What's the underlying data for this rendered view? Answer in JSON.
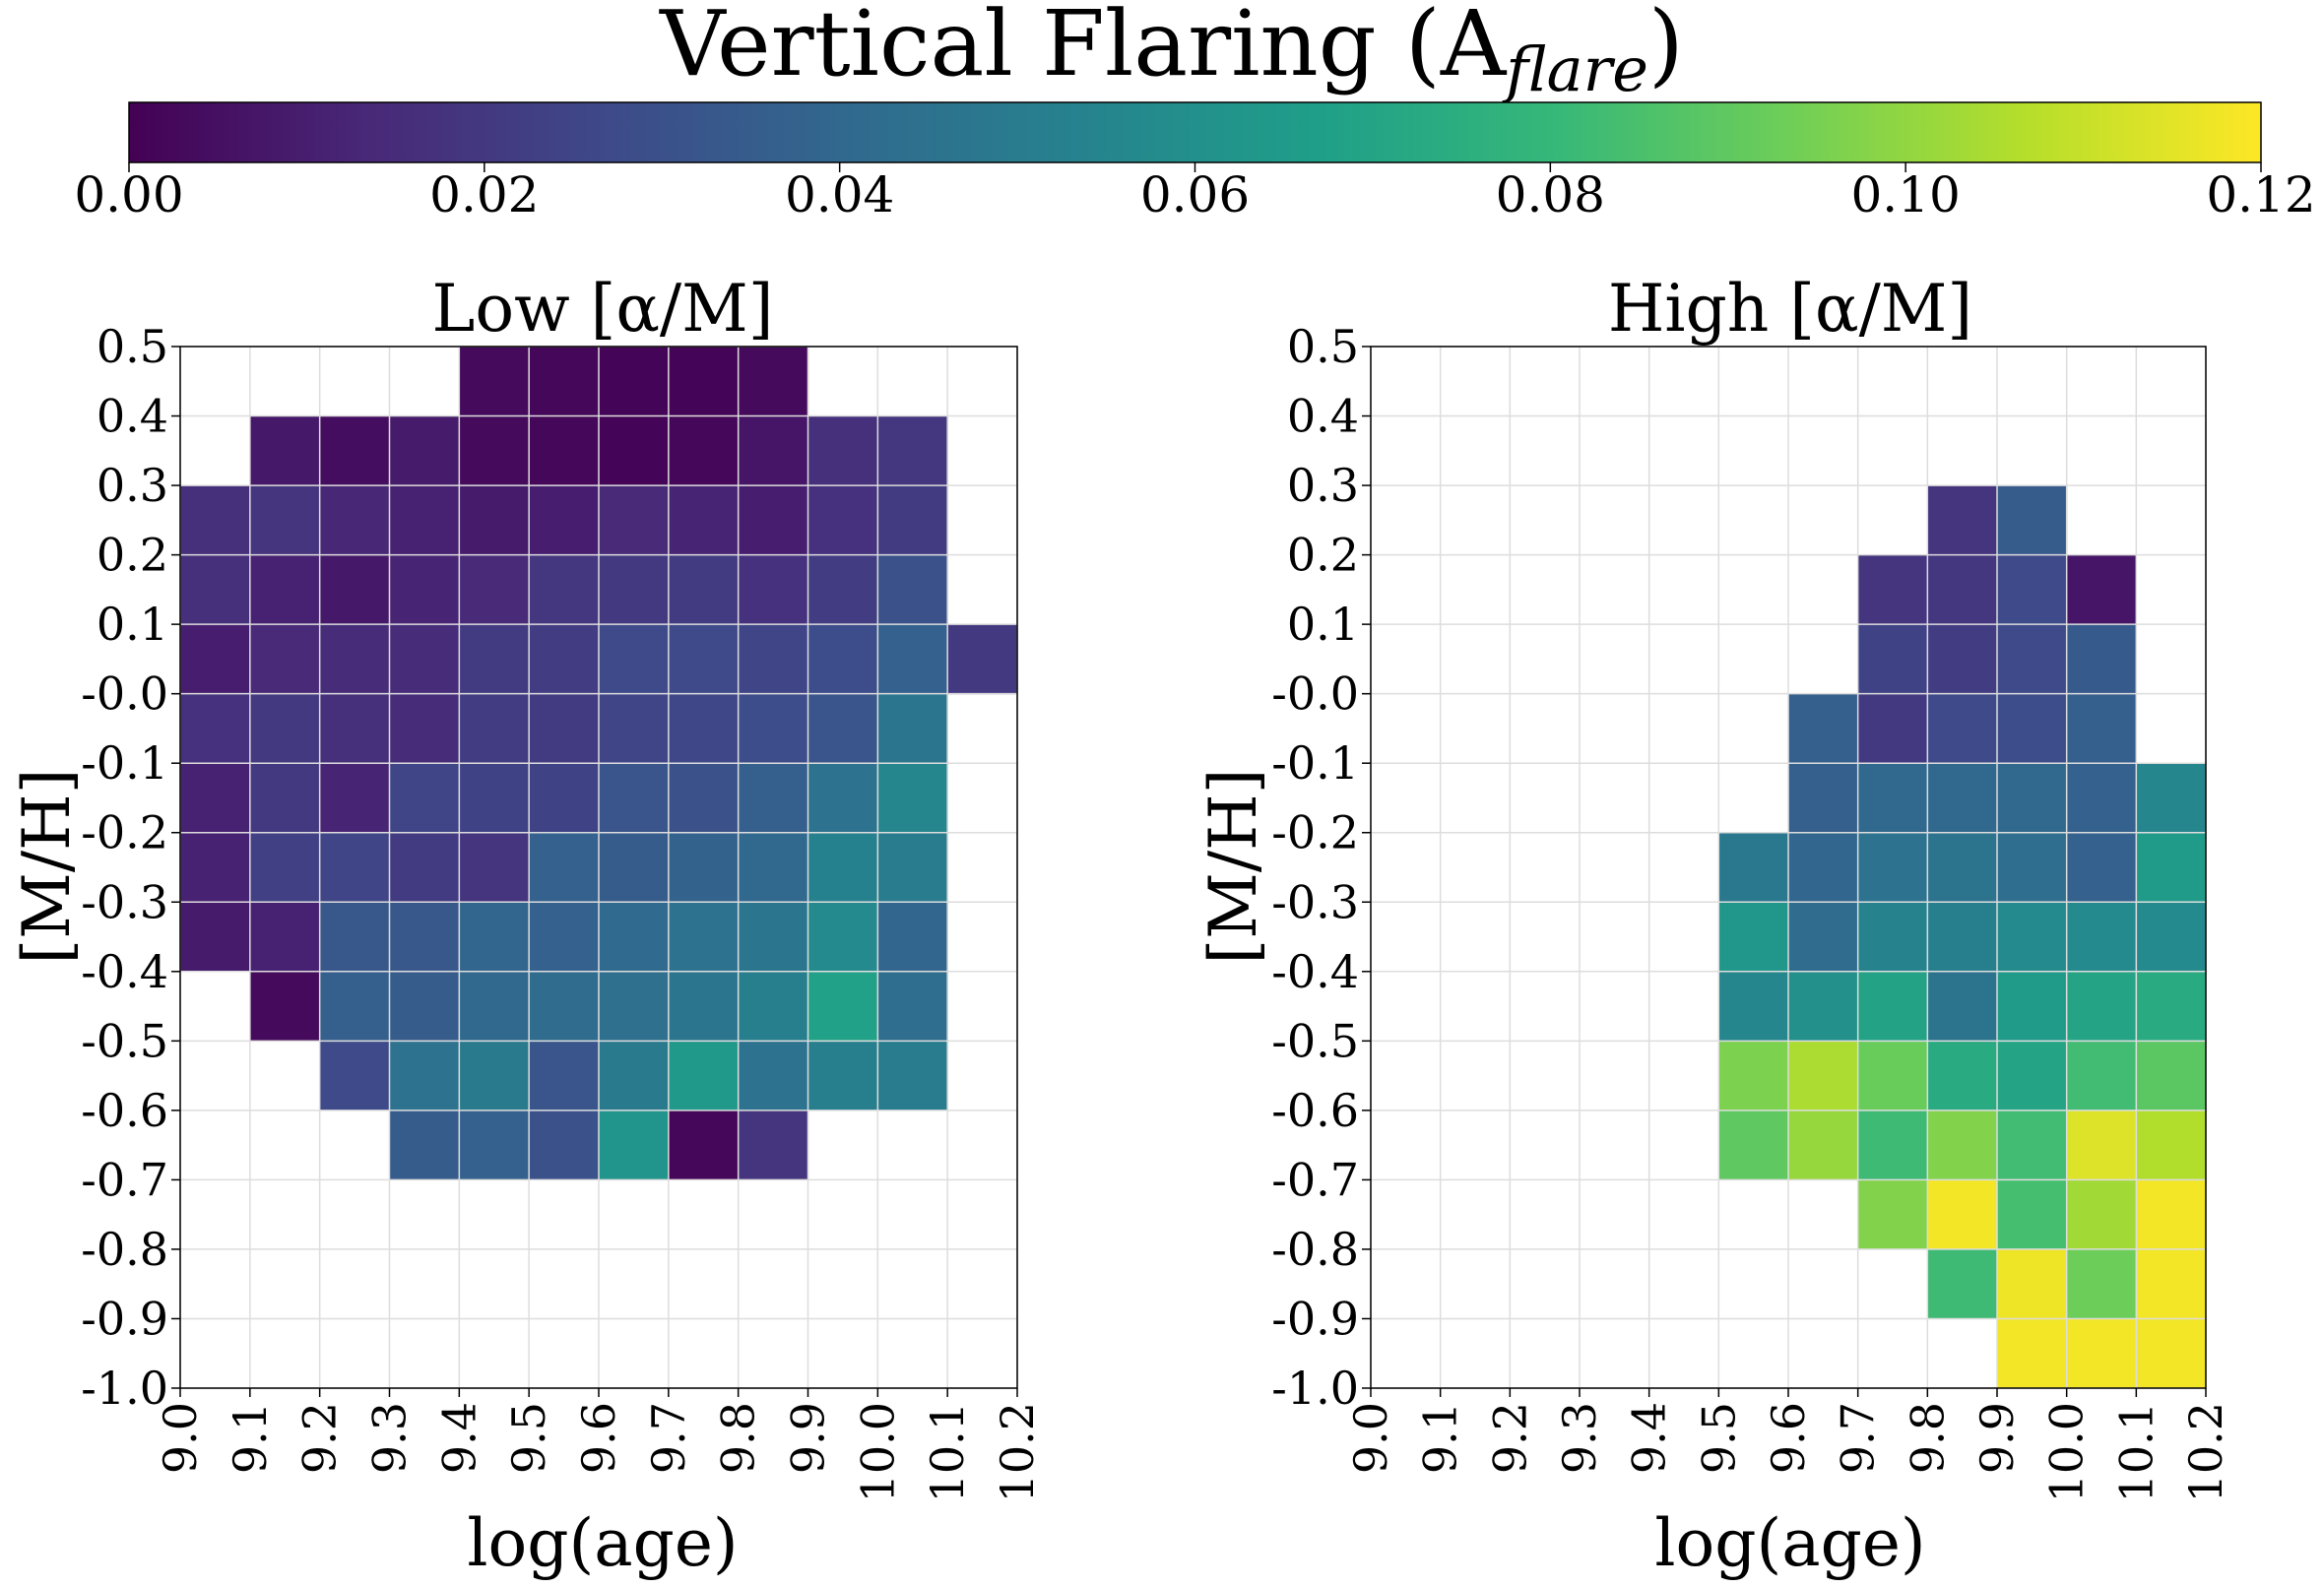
{
  "figure": {
    "title": "Vertical Flaring (A",
    "title_sub": "flare",
    "title_close": ")"
  },
  "colorbar": {
    "min": 0.0,
    "max": 0.12,
    "ticks": [
      "0.00",
      "0.02",
      "0.04",
      "0.06",
      "0.08",
      "0.10",
      "0.12"
    ],
    "colormap": "viridis",
    "stops": [
      "#440154",
      "#482878",
      "#3e4989",
      "#31688e",
      "#26828e",
      "#1f9e89",
      "#35b779",
      "#6ece58",
      "#b5de2b",
      "#fde725"
    ]
  },
  "axes_common": {
    "xlabel": "log(age)",
    "ylabel": "[M/H]",
    "x_ticks": [
      "9.0",
      "9.1",
      "9.2",
      "9.3",
      "9.4",
      "9.5",
      "9.6",
      "9.7",
      "9.8",
      "9.9",
      "10.0",
      "10.1",
      "10.2"
    ],
    "y_ticks": [
      "0.5",
      "0.4",
      "0.3",
      "0.2",
      "0.1",
      "-0.0",
      "-0.1",
      "-0.2",
      "-0.3",
      "-0.4",
      "-0.5",
      "-0.6",
      "-0.7",
      "-0.8",
      "-0.9",
      "-1.0"
    ],
    "grid_color": "#dddddd"
  },
  "chart_data": [
    {
      "type": "heatmap",
      "title": "Low [α/M]",
      "xlabel": "log(age)",
      "ylabel": "[M/H]",
      "xlim": [
        9.0,
        10.2
      ],
      "ylim": [
        -1.0,
        0.5
      ],
      "colorbar_range": [
        0.0,
        0.12
      ],
      "x_bin_edges_start": 9.0,
      "x_bin_width": 0.1,
      "y_bin_top": 0.5,
      "y_bin_height": 0.1,
      "rows_top_to_bottom": [
        [
          null,
          null,
          null,
          null,
          0.003,
          0.002,
          0.001,
          0.001,
          0.003,
          null,
          null,
          null
        ],
        [
          null,
          0.008,
          0.004,
          0.009,
          0.003,
          0.002,
          0.001,
          0.002,
          0.007,
          0.016,
          0.019,
          null
        ],
        [
          0.016,
          0.018,
          0.013,
          0.011,
          0.009,
          0.01,
          0.014,
          0.012,
          0.01,
          0.017,
          0.021,
          null
        ],
        [
          0.016,
          0.011,
          0.008,
          0.012,
          0.014,
          0.019,
          0.02,
          0.021,
          0.017,
          0.022,
          0.03,
          null
        ],
        [
          0.01,
          0.014,
          0.015,
          0.015,
          0.021,
          0.022,
          0.027,
          0.027,
          0.025,
          0.028,
          0.037,
          0.02
        ],
        [
          0.017,
          0.02,
          0.016,
          0.015,
          0.022,
          0.021,
          0.025,
          0.026,
          0.028,
          0.032,
          0.047,
          null
        ],
        [
          0.011,
          0.02,
          0.012,
          0.025,
          0.024,
          0.024,
          0.032,
          0.03,
          0.036,
          0.045,
          0.055,
          null
        ],
        [
          0.011,
          0.023,
          0.025,
          0.021,
          0.018,
          0.037,
          0.035,
          0.038,
          0.04,
          0.053,
          0.05,
          null
        ],
        [
          0.009,
          0.011,
          0.033,
          0.033,
          0.039,
          0.037,
          0.041,
          0.045,
          0.047,
          0.057,
          0.039,
          null
        ],
        [
          null,
          0.003,
          0.036,
          0.035,
          0.04,
          0.042,
          0.044,
          0.047,
          0.052,
          0.068,
          0.043,
          null
        ],
        [
          null,
          null,
          0.027,
          0.045,
          0.049,
          0.032,
          0.049,
          0.064,
          0.045,
          0.052,
          0.05,
          null
        ],
        [
          null,
          null,
          null,
          0.035,
          0.037,
          0.03,
          0.062,
          0.002,
          0.018,
          null,
          null,
          null
        ],
        [
          null,
          null,
          null,
          null,
          null,
          null,
          null,
          null,
          null,
          null,
          null,
          null
        ],
        [
          null,
          null,
          null,
          null,
          null,
          null,
          null,
          null,
          null,
          null,
          null,
          null
        ],
        [
          null,
          null,
          null,
          null,
          null,
          null,
          null,
          null,
          null,
          null,
          null,
          null
        ]
      ]
    },
    {
      "type": "heatmap",
      "title": "High [α/M]",
      "xlabel": "log(age)",
      "ylabel": "[M/H]",
      "xlim": [
        9.0,
        10.2
      ],
      "ylim": [
        -1.0,
        0.5
      ],
      "colorbar_range": [
        0.0,
        0.12
      ],
      "x_bin_edges_start": 9.0,
      "x_bin_width": 0.1,
      "y_bin_top": 0.5,
      "y_bin_height": 0.1,
      "rows_top_to_bottom": [
        [
          null,
          null,
          null,
          null,
          null,
          null,
          null,
          null,
          null,
          null,
          null,
          null
        ],
        [
          null,
          null,
          null,
          null,
          null,
          null,
          null,
          null,
          null,
          null,
          null,
          null
        ],
        [
          null,
          null,
          null,
          null,
          null,
          null,
          null,
          null,
          0.018,
          0.035,
          null,
          null
        ],
        [
          null,
          null,
          null,
          null,
          null,
          null,
          null,
          0.018,
          0.019,
          0.027,
          0.007,
          null
        ],
        [
          null,
          null,
          null,
          null,
          null,
          null,
          null,
          0.024,
          0.022,
          0.027,
          0.034,
          null
        ],
        [
          null,
          null,
          null,
          null,
          null,
          null,
          0.036,
          0.02,
          0.027,
          0.028,
          0.036,
          null
        ],
        [
          null,
          null,
          null,
          null,
          null,
          null,
          0.036,
          0.04,
          0.04,
          0.04,
          0.037,
          0.055
        ],
        [
          null,
          null,
          null,
          null,
          null,
          0.048,
          0.039,
          0.045,
          0.046,
          0.043,
          0.037,
          0.065
        ],
        [
          null,
          null,
          null,
          null,
          null,
          0.063,
          0.042,
          0.054,
          0.052,
          0.057,
          0.057,
          0.057
        ],
        [
          null,
          null,
          null,
          null,
          null,
          0.055,
          0.06,
          0.069,
          0.046,
          0.065,
          0.07,
          0.073
        ],
        [
          null,
          null,
          null,
          null,
          null,
          0.096,
          0.105,
          0.092,
          0.073,
          0.07,
          0.083,
          0.089
        ],
        [
          null,
          null,
          null,
          null,
          null,
          0.09,
          0.101,
          0.082,
          0.097,
          0.083,
          0.114,
          0.106
        ],
        [
          null,
          null,
          null,
          null,
          null,
          null,
          null,
          0.097,
          0.118,
          0.084,
          0.103,
          0.118
        ],
        [
          null,
          null,
          null,
          null,
          null,
          null,
          null,
          null,
          0.082,
          0.117,
          0.093,
          0.118
        ],
        [
          null,
          null,
          null,
          null,
          null,
          null,
          null,
          null,
          null,
          0.118,
          0.118,
          0.118
        ]
      ]
    }
  ]
}
